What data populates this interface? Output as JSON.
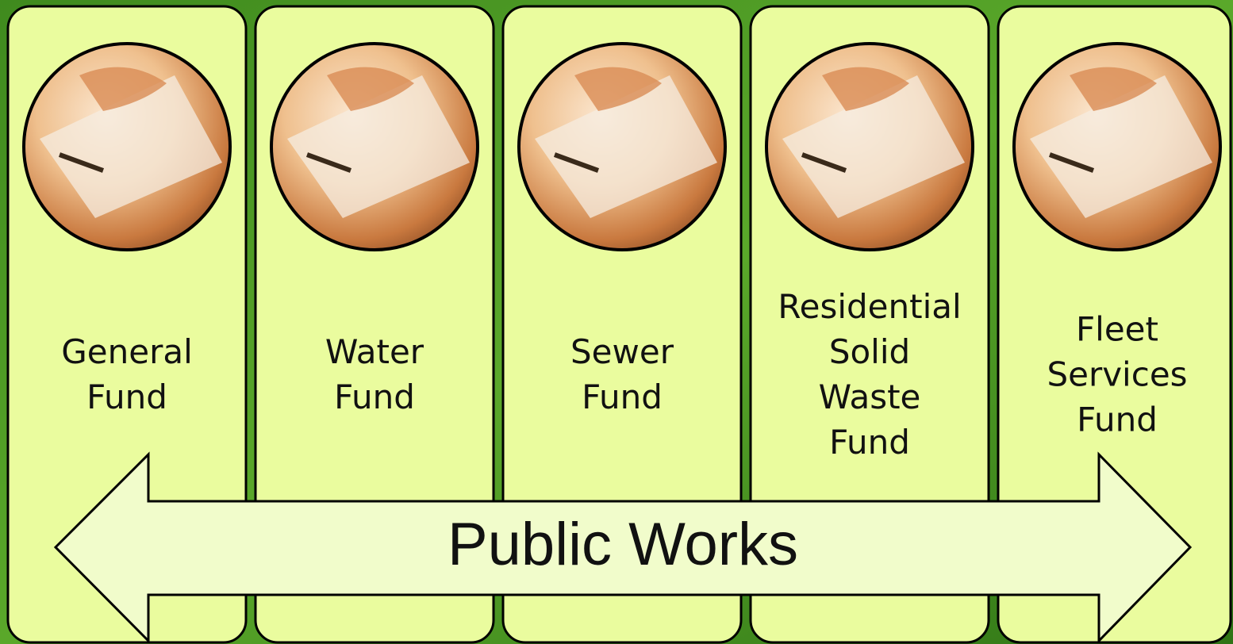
{
  "nodes": [
    {
      "lines": [
        "General",
        "Fund"
      ]
    },
    {
      "lines": [
        "Water",
        "Fund"
      ]
    },
    {
      "lines": [
        "Sewer",
        "Fund"
      ]
    },
    {
      "lines": [
        "Residential",
        "Solid",
        "Waste",
        "Fund"
      ]
    },
    {
      "lines": [
        "Fleet",
        "Services",
        "Fund"
      ]
    }
  ],
  "arrow": {
    "label": "Public Works"
  }
}
